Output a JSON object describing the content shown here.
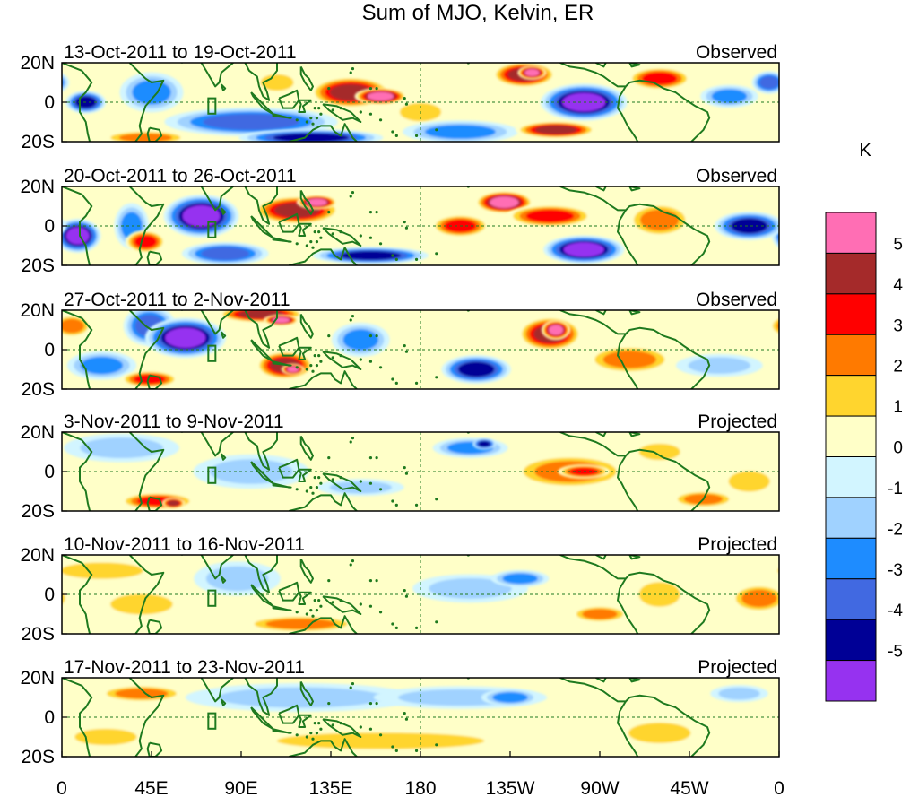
{
  "chart_data": {
    "type": "heatmap",
    "title": "Sum of MJO, Kelvin, ER",
    "colorbar_unit": "K",
    "colorbar_labels": [
      "5",
      "4",
      "3",
      "2",
      "1",
      "0",
      "-1",
      "-2",
      "-3",
      "-4",
      "-5"
    ],
    "colorbar_colors": [
      "#ff6eb4",
      "#a52a2a",
      "#ff0000",
      "#ff7a00",
      "#ffd52e",
      "#ffffc8",
      "#d2f5ff",
      "#a0d2ff",
      "#1e8cff",
      "#4169e1",
      "#000096",
      "#9632f0"
    ],
    "colorbar_levels": [
      5,
      4,
      3,
      2,
      1,
      0,
      -1,
      -2,
      -3,
      -4,
      -5
    ],
    "x_ticks": [
      {
        "lon": 0,
        "label": "0"
      },
      {
        "lon": 45,
        "label": "45E"
      },
      {
        "lon": 90,
        "label": "90E"
      },
      {
        "lon": 135,
        "label": "135E"
      },
      {
        "lon": 180,
        "label": "180"
      },
      {
        "lon": 225,
        "label": "135W"
      },
      {
        "lon": 270,
        "label": "90W"
      },
      {
        "lon": 315,
        "label": "45W"
      },
      {
        "lon": 360,
        "label": "0"
      }
    ],
    "y_ticks": [
      {
        "lat": 20,
        "label": "20N"
      },
      {
        "lat": 0,
        "label": "0"
      },
      {
        "lat": -20,
        "label": "20S"
      }
    ],
    "xlim": [
      0,
      360
    ],
    "ylim": [
      -20,
      20
    ],
    "panels": [
      {
        "period": "13-Oct-2011 to 19-Oct-2011",
        "status": "Observed",
        "blobs": [
          {
            "lon": 12,
            "lat": 0,
            "w": 14,
            "h": 8,
            "v": -4
          },
          {
            "lon": 45,
            "lat": 5,
            "w": 22,
            "h": 14,
            "v": -2
          },
          {
            "lon": 42,
            "lat": -18,
            "w": 30,
            "h": 5,
            "v": 2
          },
          {
            "lon": 95,
            "lat": -10,
            "w": 60,
            "h": 10,
            "v": -3
          },
          {
            "lon": 108,
            "lat": 10,
            "w": 16,
            "h": 8,
            "v": 1
          },
          {
            "lon": 125,
            "lat": -18,
            "w": 50,
            "h": 6,
            "v": -4
          },
          {
            "lon": 145,
            "lat": 5,
            "w": 28,
            "h": 11,
            "v": 4
          },
          {
            "lon": 160,
            "lat": 3,
            "w": 18,
            "h": 6,
            "v": 5
          },
          {
            "lon": 180,
            "lat": -5,
            "w": 20,
            "h": 9,
            "v": 1
          },
          {
            "lon": 200,
            "lat": -15,
            "w": 40,
            "h": 8,
            "v": -2
          },
          {
            "lon": 232,
            "lat": 14,
            "w": 22,
            "h": 9,
            "v": 4
          },
          {
            "lon": 236,
            "lat": 15,
            "w": 10,
            "h": 5,
            "v": 5
          },
          {
            "lon": 262,
            "lat": 0,
            "w": 30,
            "h": 13,
            "v": -5
          },
          {
            "lon": 248,
            "lat": -14,
            "w": 28,
            "h": 6,
            "v": 4
          },
          {
            "lon": 300,
            "lat": 12,
            "w": 22,
            "h": 8,
            "v": 3
          },
          {
            "lon": 335,
            "lat": 3,
            "w": 20,
            "h": 8,
            "v": -2
          },
          {
            "lon": 355,
            "lat": 10,
            "w": 12,
            "h": 8,
            "v": -3
          }
        ]
      },
      {
        "period": "20-Oct-2011 to 26-Oct-2011",
        "status": "Observed",
        "blobs": [
          {
            "lon": 8,
            "lat": -5,
            "w": 16,
            "h": 12,
            "v": -5
          },
          {
            "lon": 35,
            "lat": 0,
            "w": 12,
            "h": 16,
            "v": -2
          },
          {
            "lon": 42,
            "lat": -8,
            "w": 14,
            "h": 8,
            "v": 3
          },
          {
            "lon": 70,
            "lat": 5,
            "w": 26,
            "h": 15,
            "v": -5
          },
          {
            "lon": 82,
            "lat": -14,
            "w": 30,
            "h": 8,
            "v": -3
          },
          {
            "lon": 118,
            "lat": 8,
            "w": 30,
            "h": 10,
            "v": 4
          },
          {
            "lon": 128,
            "lat": 12,
            "w": 14,
            "h": 5,
            "v": 5
          },
          {
            "lon": 155,
            "lat": -15,
            "w": 40,
            "h": 6,
            "v": -4
          },
          {
            "lon": 200,
            "lat": 0,
            "w": 20,
            "h": 8,
            "v": 3
          },
          {
            "lon": 222,
            "lat": 12,
            "w": 20,
            "h": 8,
            "v": 5
          },
          {
            "lon": 245,
            "lat": 5,
            "w": 30,
            "h": 8,
            "v": 3
          },
          {
            "lon": 262,
            "lat": -12,
            "w": 28,
            "h": 10,
            "v": -5
          },
          {
            "lon": 300,
            "lat": 3,
            "w": 22,
            "h": 12,
            "v": 2
          },
          {
            "lon": 345,
            "lat": 0,
            "w": 24,
            "h": 10,
            "v": -4
          }
        ]
      },
      {
        "period": "27-Oct-2011 to 2-Nov-2011",
        "status": "Observed",
        "blobs": [
          {
            "lon": 5,
            "lat": 12,
            "w": 14,
            "h": 8,
            "v": 2
          },
          {
            "lon": 20,
            "lat": -8,
            "w": 24,
            "h": 10,
            "v": -2
          },
          {
            "lon": 44,
            "lat": 12,
            "w": 18,
            "h": 14,
            "v": -3
          },
          {
            "lon": 62,
            "lat": 6,
            "w": 28,
            "h": 14,
            "v": -5
          },
          {
            "lon": 44,
            "lat": -15,
            "w": 20,
            "h": 6,
            "v": 3
          },
          {
            "lon": 100,
            "lat": 18,
            "w": 30,
            "h": 6,
            "v": 4
          },
          {
            "lon": 110,
            "lat": 15,
            "w": 12,
            "h": 4,
            "v": 5
          },
          {
            "lon": 112,
            "lat": -8,
            "w": 20,
            "h": 10,
            "v": 4
          },
          {
            "lon": 116,
            "lat": -10,
            "w": 8,
            "h": 4,
            "v": 5
          },
          {
            "lon": 150,
            "lat": 5,
            "w": 20,
            "h": 12,
            "v": -2
          },
          {
            "lon": 208,
            "lat": -10,
            "w": 24,
            "h": 10,
            "v": -4
          },
          {
            "lon": 245,
            "lat": 8,
            "w": 22,
            "h": 12,
            "v": 4
          },
          {
            "lon": 248,
            "lat": 10,
            "w": 10,
            "h": 7,
            "v": 5
          },
          {
            "lon": 285,
            "lat": -5,
            "w": 30,
            "h": 10,
            "v": 2
          },
          {
            "lon": 330,
            "lat": -8,
            "w": 30,
            "h": 8,
            "v": -1
          }
        ]
      },
      {
        "period": "3-Nov-2011 to 9-Nov-2011",
        "status": "Projected",
        "blobs": [
          {
            "lon": 30,
            "lat": 12,
            "w": 40,
            "h": 10,
            "v": -1
          },
          {
            "lon": 48,
            "lat": -15,
            "w": 26,
            "h": 6,
            "v": 3
          },
          {
            "lon": 56,
            "lat": -16,
            "w": 8,
            "h": 4,
            "v": 4
          },
          {
            "lon": 95,
            "lat": 0,
            "w": 40,
            "h": 12,
            "v": -1
          },
          {
            "lon": 150,
            "lat": -8,
            "w": 30,
            "h": 6,
            "v": -1
          },
          {
            "lon": 205,
            "lat": 12,
            "w": 26,
            "h": 7,
            "v": -2
          },
          {
            "lon": 212,
            "lat": 14,
            "w": 8,
            "h": 4,
            "v": -4
          },
          {
            "lon": 255,
            "lat": 0,
            "w": 40,
            "h": 12,
            "v": 2
          },
          {
            "lon": 262,
            "lat": 0,
            "w": 18,
            "h": 5,
            "v": 3
          },
          {
            "lon": 300,
            "lat": 10,
            "w": 20,
            "h": 8,
            "v": 1
          },
          {
            "lon": 322,
            "lat": -14,
            "w": 22,
            "h": 6,
            "v": 2
          },
          {
            "lon": 345,
            "lat": -5,
            "w": 20,
            "h": 10,
            "v": 1
          }
        ]
      },
      {
        "period": "10-Nov-2011 to 16-Nov-2011",
        "status": "Projected",
        "blobs": [
          {
            "lon": 20,
            "lat": 12,
            "w": 40,
            "h": 8,
            "v": 1
          },
          {
            "lon": 40,
            "lat": -5,
            "w": 30,
            "h": 10,
            "v": 1
          },
          {
            "lon": 88,
            "lat": 8,
            "w": 30,
            "h": 12,
            "v": -1
          },
          {
            "lon": 120,
            "lat": -15,
            "w": 40,
            "h": 6,
            "v": 2
          },
          {
            "lon": 205,
            "lat": 3,
            "w": 40,
            "h": 10,
            "v": -1
          },
          {
            "lon": 230,
            "lat": 8,
            "w": 20,
            "h": 6,
            "v": -2
          },
          {
            "lon": 270,
            "lat": -10,
            "w": 20,
            "h": 6,
            "v": 2
          },
          {
            "lon": 300,
            "lat": 0,
            "w": 20,
            "h": 12,
            "v": 1
          },
          {
            "lon": 350,
            "lat": -2,
            "w": 20,
            "h": 10,
            "v": 2
          }
        ]
      },
      {
        "period": "17-Nov-2011 to 23-Nov-2011",
        "status": "Projected",
        "blobs": [
          {
            "lon": 40,
            "lat": 12,
            "w": 30,
            "h": 6,
            "v": 2
          },
          {
            "lon": 22,
            "lat": -10,
            "w": 30,
            "h": 8,
            "v": 1
          },
          {
            "lon": 120,
            "lat": 10,
            "w": 80,
            "h": 10,
            "v": -1
          },
          {
            "lon": 200,
            "lat": 10,
            "w": 60,
            "h": 8,
            "v": -1
          },
          {
            "lon": 225,
            "lat": 10,
            "w": 20,
            "h": 6,
            "v": -2
          },
          {
            "lon": 160,
            "lat": -12,
            "w": 100,
            "h": 8,
            "v": 1
          },
          {
            "lon": 300,
            "lat": -8,
            "w": 30,
            "h": 10,
            "v": 1
          },
          {
            "lon": 340,
            "lat": 12,
            "w": 20,
            "h": 6,
            "v": -1
          }
        ]
      }
    ]
  }
}
